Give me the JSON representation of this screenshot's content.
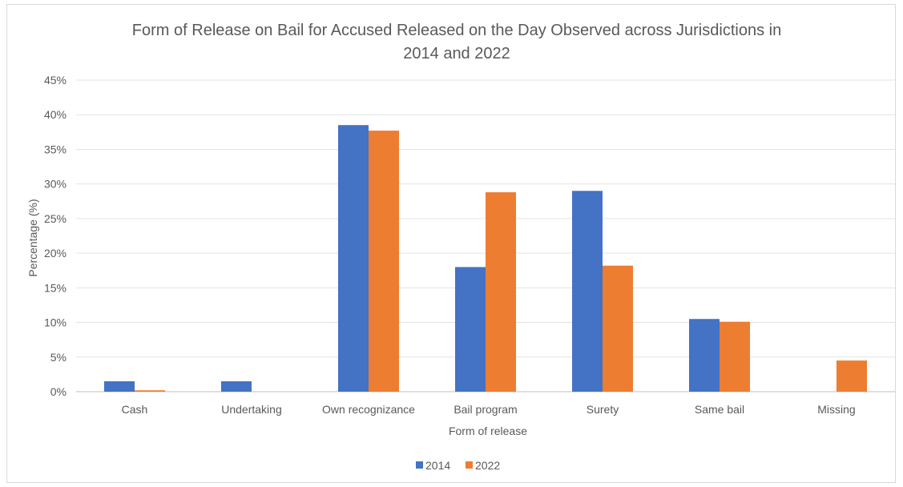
{
  "chart_data": {
    "type": "bar",
    "title_lines": [
      "Form of Release on Bail for Accused Released on the Day Observed across Jurisdictions in",
      "2014 and 2022"
    ],
    "xlabel": "Form of release",
    "ylabel": "Percentage (%)",
    "categories": [
      "Cash",
      "Undertaking",
      "Own recognizance",
      "Bail program",
      "Surety",
      "Same bail",
      "Missing"
    ],
    "series": [
      {
        "name": "2014",
        "color": "#4472c4",
        "values": [
          1.5,
          1.5,
          38.5,
          18.0,
          29.0,
          10.5,
          0
        ]
      },
      {
        "name": "2022",
        "color": "#ed7d31",
        "values": [
          0.2,
          0,
          37.7,
          28.8,
          18.2,
          10.1,
          4.5
        ]
      }
    ],
    "ylim": [
      0,
      45
    ],
    "yticks": [
      "0%",
      "5%",
      "10%",
      "15%",
      "20%",
      "25%",
      "30%",
      "35%",
      "40%",
      "45%"
    ],
    "grid": true,
    "legend_position": "bottom"
  }
}
